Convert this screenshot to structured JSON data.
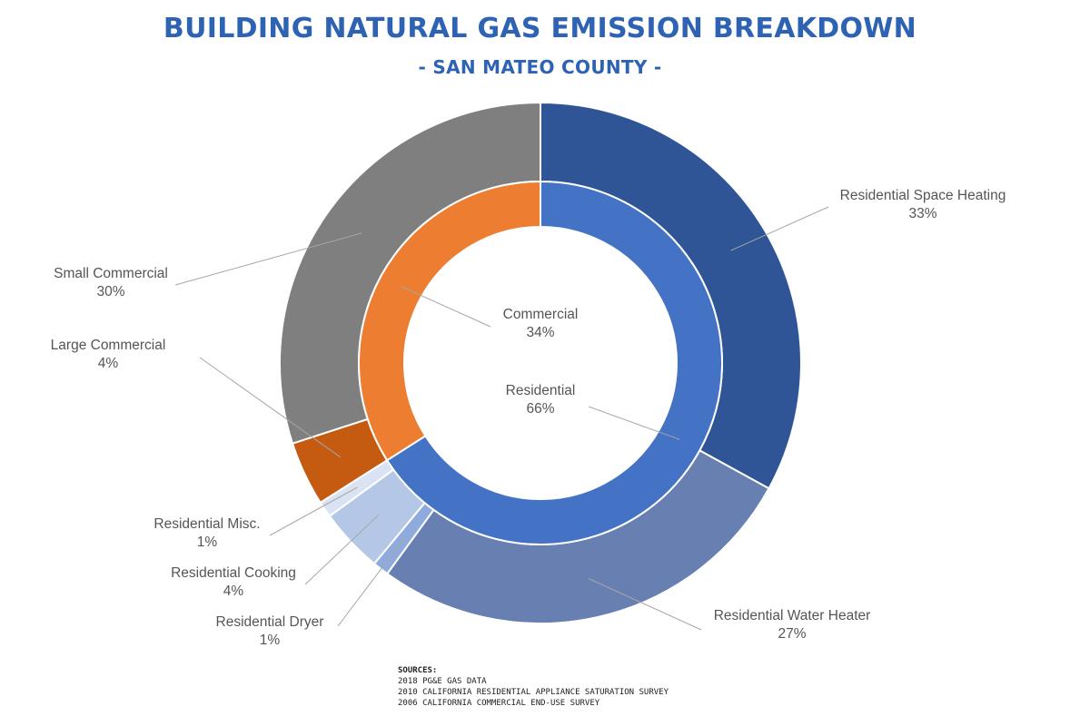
{
  "chart_data": {
    "type": "pie",
    "subtype": "nested-donut",
    "title": "BUILDING NATURAL GAS EMISSION BREAKDOWN",
    "subtitle": "- SAN MATEO COUNTY -",
    "inner_ring": [
      {
        "name": "Residential",
        "value": 66,
        "label": "66%",
        "color": "#4472c4"
      },
      {
        "name": "Commercial",
        "value": 34,
        "label": "34%",
        "color": "#ed7d31"
      }
    ],
    "outer_ring": [
      {
        "name": "Residential Space Heating",
        "value": 33,
        "label": "33%",
        "color": "#2f5597"
      },
      {
        "name": "Residential Water Heater",
        "value": 27,
        "label": "27%",
        "color": "#6780b1"
      },
      {
        "name": "Residential Dryer",
        "value": 1,
        "label": "1%",
        "color": "#8faadc"
      },
      {
        "name": "Residential Cooking",
        "value": 4,
        "label": "4%",
        "color": "#b4c7e7"
      },
      {
        "name": "Residential Misc.",
        "value": 1,
        "label": "1%",
        "color": "#dae3f3"
      },
      {
        "name": "Large Commercial",
        "value": 4,
        "label": "4%",
        "color": "#c55a11"
      },
      {
        "name": "Small Commercial",
        "value": 30,
        "label": "30%",
        "color": "#7f7f7f"
      }
    ]
  },
  "sources": {
    "header": "SOURCES:",
    "lines": [
      "2018 PG&E GAS DATA",
      "2010 CALIFORNIA RESIDENTIAL APPLIANCE SATURATION SURVEY",
      "2006 CALIFORNIA COMMERCIAL END-USE SURVEY"
    ]
  }
}
